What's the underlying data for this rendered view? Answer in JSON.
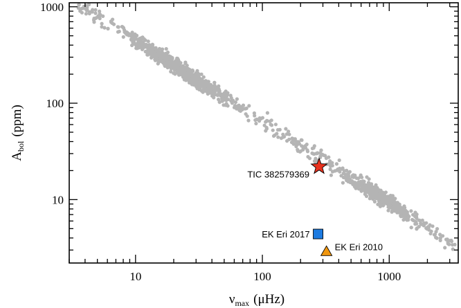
{
  "chart_data": {
    "type": "scatter",
    "xscale": "log",
    "yscale": "log",
    "xlim": [
      3,
      3500
    ],
    "ylim": [
      2.2,
      1100
    ],
    "xticks": [
      {
        "value": 10,
        "label": "10"
      },
      {
        "value": 100,
        "label": "100"
      },
      {
        "value": 1000,
        "label": "1000"
      }
    ],
    "yticks": [
      {
        "value": 10,
        "label": "10"
      },
      {
        "value": 100,
        "label": "100"
      },
      {
        "value": 1000,
        "label": "1000"
      }
    ],
    "xlabel": {
      "symbol": "ν",
      "sub": "max",
      "unit": "(μHz)"
    },
    "ylabel": {
      "symbol": "A",
      "sub": "bol",
      "unit": "(ppm)"
    },
    "grid": false,
    "background": {
      "color": "#b4b4b4",
      "count": 1500,
      "trend": "log10(A) = 3.49 - 0.84 * log10(nu_max)",
      "x_range": [
        3.5,
        3300
      ]
    },
    "highlighted": [
      {
        "label": "TIC 382579369",
        "x": 280,
        "y": 22,
        "marker": "star",
        "color": "#e8321e"
      },
      {
        "label": "EK Eri 2017",
        "x": 275,
        "y": 4.4,
        "marker": "square",
        "color": "#1e7be0"
      },
      {
        "label": "EK Eri 2010",
        "x": 320,
        "y": 2.9,
        "marker": "triangle",
        "color": "#f0960f"
      }
    ]
  }
}
